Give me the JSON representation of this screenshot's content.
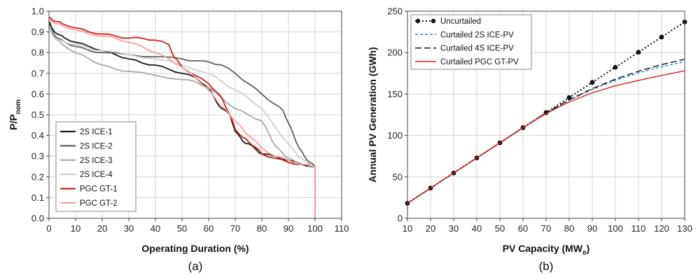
{
  "chart_data": [
    {
      "type": "line",
      "panel_label": "(a)",
      "xlabel": "Operating Duration (%)",
      "ylabel": "P/P",
      "ylabel_sub": "nom",
      "xlim": [
        0,
        110
      ],
      "ylim": [
        0,
        1.0
      ],
      "xticks": [
        "0",
        "10",
        "20",
        "30",
        "40",
        "50",
        "60",
        "70",
        "80",
        "90",
        "100",
        "110"
      ],
      "yticks": [
        "0.0",
        "0.1",
        "0.2",
        "0.3",
        "0.4",
        "0.5",
        "0.6",
        "0.7",
        "0.8",
        "0.9",
        "1.0"
      ],
      "grid": true,
      "legend_position": "bottom-left",
      "series": [
        {
          "name": "2S ICE-1",
          "color": "#1a1a1a",
          "x": [
            0,
            1,
            3,
            6,
            10,
            15,
            20,
            25,
            30,
            35,
            40,
            45,
            50,
            55,
            60,
            63,
            65,
            68,
            70,
            73,
            75,
            78,
            80,
            85,
            90,
            95,
            100
          ],
          "y": [
            0.95,
            0.92,
            0.89,
            0.87,
            0.85,
            0.83,
            0.81,
            0.79,
            0.77,
            0.75,
            0.74,
            0.72,
            0.7,
            0.68,
            0.63,
            0.56,
            0.53,
            0.5,
            0.42,
            0.37,
            0.36,
            0.33,
            0.31,
            0.3,
            0.28,
            0.26,
            0.25
          ]
        },
        {
          "name": "2S ICE-2",
          "color": "#5f5f5f",
          "x": [
            0,
            1,
            3,
            6,
            10,
            15,
            20,
            30,
            40,
            50,
            55,
            60,
            65,
            70,
            75,
            80,
            85,
            88,
            90,
            92,
            94,
            96,
            98,
            100
          ],
          "y": [
            0.94,
            0.91,
            0.87,
            0.85,
            0.83,
            0.81,
            0.8,
            0.79,
            0.78,
            0.77,
            0.76,
            0.755,
            0.74,
            0.7,
            0.65,
            0.6,
            0.55,
            0.52,
            0.46,
            0.4,
            0.34,
            0.3,
            0.27,
            0.25
          ]
        },
        {
          "name": "2S ICE-3",
          "color": "#a8a8a8",
          "x": [
            0,
            1,
            3,
            5,
            10,
            15,
            20,
            25,
            30,
            40,
            50,
            55,
            60,
            65,
            70,
            75,
            80,
            83,
            85,
            88,
            90,
            93,
            96,
            98,
            100
          ],
          "y": [
            0.93,
            0.9,
            0.86,
            0.84,
            0.8,
            0.77,
            0.74,
            0.72,
            0.71,
            0.69,
            0.67,
            0.66,
            0.63,
            0.58,
            0.53,
            0.5,
            0.47,
            0.4,
            0.35,
            0.31,
            0.29,
            0.27,
            0.26,
            0.25,
            0.25
          ]
        },
        {
          "name": "2S ICE-4",
          "color": "#d0d0d0",
          "x": [
            0,
            1,
            3,
            6,
            10,
            15,
            20,
            30,
            40,
            50,
            60,
            65,
            70,
            75,
            80,
            85,
            90,
            93,
            96,
            98,
            100
          ],
          "y": [
            0.92,
            0.89,
            0.86,
            0.85,
            0.84,
            0.82,
            0.81,
            0.79,
            0.77,
            0.74,
            0.7,
            0.66,
            0.62,
            0.58,
            0.53,
            0.44,
            0.36,
            0.31,
            0.28,
            0.26,
            0.25
          ]
        },
        {
          "name": "PGC GT-1",
          "color": "#cc1f1f",
          "x": [
            0,
            1,
            3,
            5,
            10,
            15,
            20,
            25,
            30,
            35,
            40,
            45,
            47,
            50,
            55,
            60,
            63,
            65,
            68,
            70,
            73,
            75,
            78,
            80,
            85,
            90,
            95,
            100
          ],
          "y": [
            0.97,
            0.96,
            0.95,
            0.94,
            0.92,
            0.9,
            0.89,
            0.88,
            0.87,
            0.87,
            0.86,
            0.84,
            0.78,
            0.73,
            0.69,
            0.65,
            0.61,
            0.58,
            0.5,
            0.43,
            0.39,
            0.37,
            0.34,
            0.31,
            0.29,
            0.27,
            0.26,
            0.25
          ]
        },
        {
          "name": "PGC GT-2",
          "color": "#f4a0a0",
          "x": [
            0,
            1,
            3,
            5,
            10,
            15,
            20,
            25,
            30,
            35,
            40,
            45,
            50,
            55,
            60,
            63,
            65,
            68,
            70,
            73,
            75,
            80,
            85,
            90,
            95,
            100
          ],
          "y": [
            0.96,
            0.95,
            0.94,
            0.93,
            0.91,
            0.89,
            0.88,
            0.87,
            0.85,
            0.83,
            0.8,
            0.77,
            0.73,
            0.68,
            0.62,
            0.57,
            0.54,
            0.5,
            0.47,
            0.43,
            0.4,
            0.34,
            0.3,
            0.28,
            0.26,
            0.25
          ]
        }
      ]
    },
    {
      "type": "line",
      "panel_label": "(b)",
      "xlabel": "PV Capacity (MW",
      "xlabel_sub": "e",
      "xlabel_suffix": ")",
      "ylabel": "Annual PV Generation (GWh)",
      "xlim": [
        10,
        130
      ],
      "ylim": [
        0,
        250
      ],
      "xticks": [
        "10",
        "20",
        "30",
        "40",
        "50",
        "60",
        "70",
        "80",
        "90",
        "100",
        "110",
        "120",
        "130"
      ],
      "yticks": [
        "0",
        "50",
        "100",
        "150",
        "200",
        "250"
      ],
      "grid": true,
      "legend_position": "top-left",
      "series": [
        {
          "name": "Uncurtailed",
          "color": "#111111",
          "style": "dotted-markers",
          "x": [
            10,
            20,
            30,
            40,
            50,
            60,
            70,
            80,
            90,
            100,
            110,
            120,
            130
          ],
          "y": [
            18.2,
            36.5,
            54.7,
            72.9,
            91.1,
            109.4,
            127.6,
            145.8,
            164.1,
            182.3,
            200.5,
            218.8,
            237.0
          ]
        },
        {
          "name": "Curtailed 2S ICE-PV",
          "color": "#2f7fc8",
          "style": "dashed",
          "x": [
            10,
            20,
            30,
            40,
            50,
            60,
            70,
            80,
            90,
            100,
            110,
            120,
            130
          ],
          "y": [
            18.2,
            36.5,
            54.7,
            72.9,
            91.1,
            109.4,
            127.0,
            142.5,
            155.5,
            166.5,
            175.5,
            183.0,
            189.0
          ]
        },
        {
          "name": "Curtailed 4S ICE-PV",
          "color": "#111111",
          "style": "long-dashed",
          "x": [
            10,
            20,
            30,
            40,
            50,
            60,
            70,
            80,
            90,
            100,
            110,
            120,
            130
          ],
          "y": [
            18.2,
            36.5,
            54.7,
            72.9,
            91.1,
            109.4,
            127.2,
            143.0,
            156.5,
            168.0,
            177.5,
            185.5,
            192.0
          ]
        },
        {
          "name": "Curtailed PGC GT-PV",
          "color": "#d42020",
          "style": "solid",
          "x": [
            10,
            20,
            30,
            40,
            50,
            60,
            70,
            80,
            90,
            100,
            110,
            120,
            130
          ],
          "y": [
            18.2,
            36.5,
            54.7,
            72.9,
            91.1,
            109.4,
            126.5,
            140.5,
            151.5,
            160.0,
            166.5,
            172.5,
            178.0
          ]
        }
      ]
    }
  ]
}
